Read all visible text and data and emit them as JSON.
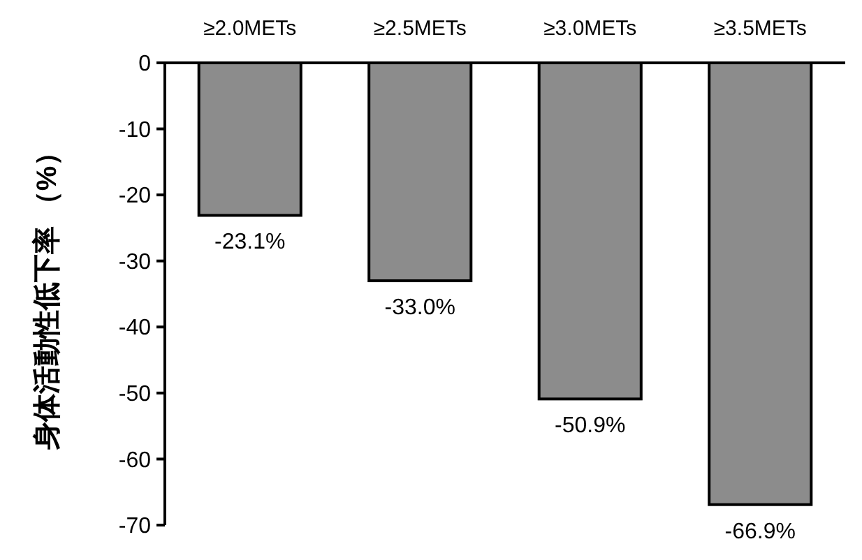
{
  "chart_data": {
    "type": "bar",
    "ylabel": "身体活動性低下率 （%）",
    "categories": [
      "≥2.0METs",
      "≥2.5METs",
      "≥3.0METs",
      "≥3.5METs"
    ],
    "values": [
      -23.1,
      -33.0,
      -50.9,
      -66.9
    ],
    "value_labels": [
      "-23.1%",
      "-33.0%",
      "-50.9%",
      "-66.9%"
    ],
    "color": "#8c8c8c",
    "ylim": [
      -70,
      0
    ],
    "yticks": [
      0,
      -10,
      -20,
      -30,
      -40,
      -50,
      -60,
      -70
    ],
    "grid": false
  }
}
